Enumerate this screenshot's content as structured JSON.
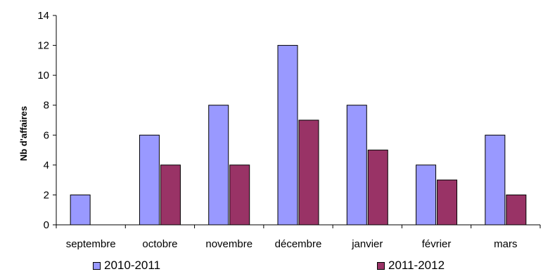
{
  "chart_data": {
    "type": "bar",
    "ylabel": "Nb d'affaires",
    "xlabel": "",
    "ylim": [
      0,
      14
    ],
    "yticks": [
      0,
      2,
      4,
      6,
      8,
      10,
      12,
      14
    ],
    "categories": [
      "septembre",
      "octobre",
      "novembre",
      "décembre",
      "janvier",
      "février",
      "mars"
    ],
    "series": [
      {
        "name": "2010-2011",
        "color": "#9999ff",
        "values": [
          2,
          6,
          8,
          12,
          8,
          4,
          6
        ]
      },
      {
        "name": "2011-2012",
        "color": "#993366",
        "values": [
          0,
          4,
          4,
          7,
          5,
          3,
          2
        ]
      }
    ],
    "grid": false,
    "legend": "bottom"
  }
}
